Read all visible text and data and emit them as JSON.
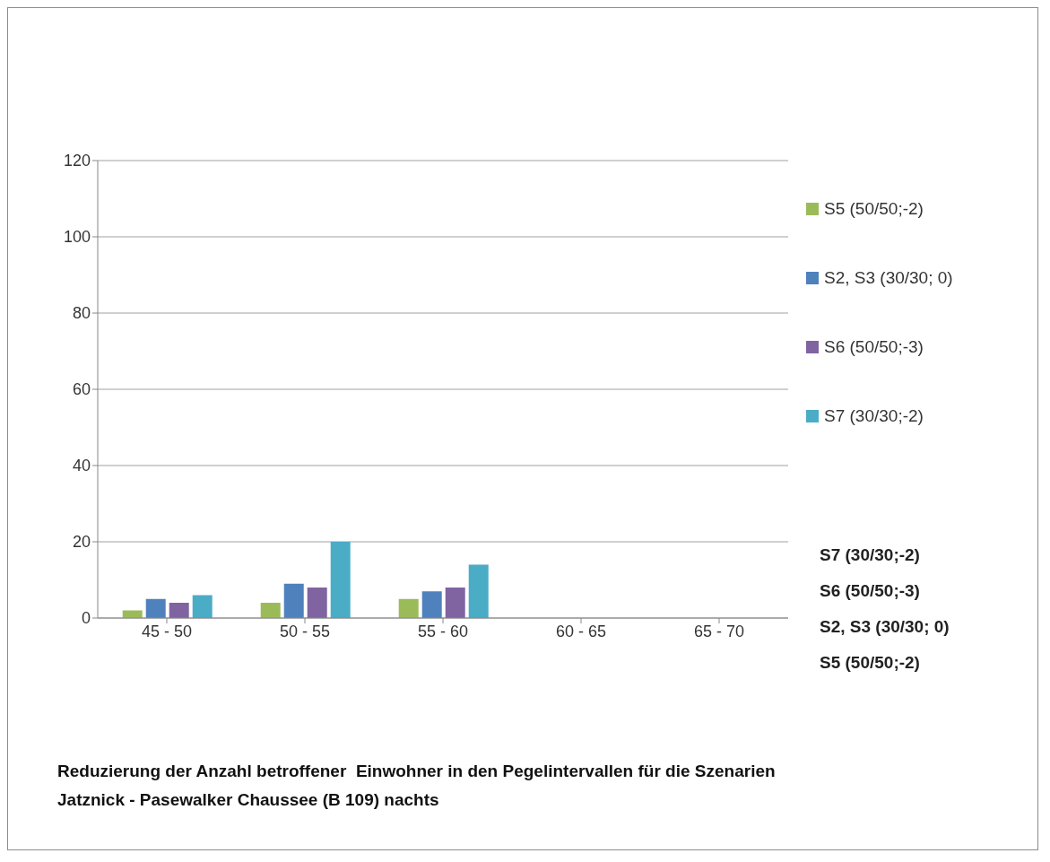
{
  "chart_data": {
    "type": "bar",
    "title": "Reduzierung der Anzahl betroffener  Einwohner in den Pegelintervallen für die Szenarien\nJatznick - Pasewalker Chaussee (B 109) nachts",
    "categories": [
      "45 - 50",
      "50 - 55",
      "55 - 60",
      "60 - 65",
      "65 - 70"
    ],
    "series": [
      {
        "name": "S5 (50/50;-2)",
        "color": "#9bbb59",
        "values": [
          2,
          4,
          5,
          0,
          0
        ]
      },
      {
        "name": "S2, S3 (30/30; 0)",
        "color": "#4f81bd",
        "values": [
          5,
          9,
          7,
          0,
          0
        ]
      },
      {
        "name": "S6 (50/50;-3)",
        "color": "#8064a2",
        "values": [
          4,
          8,
          8,
          0,
          0
        ]
      },
      {
        "name": "S7 (30/30;-2)",
        "color": "#4bacc6",
        "values": [
          6,
          20,
          14,
          0,
          0
        ]
      }
    ],
    "ylim": [
      0,
      120
    ],
    "yticks": [
      0,
      20,
      40,
      60,
      80,
      100,
      120
    ],
    "grid": "y",
    "legend": "right"
  }
}
